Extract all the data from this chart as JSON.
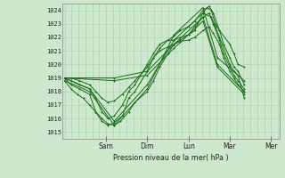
{
  "bg_color": "#cde8cd",
  "plot_bg_color": "#cde8cd",
  "grid_color": "#b0d4b0",
  "line_color": "#1a6b1a",
  "xlabel": "Pression niveau de la mer( hPa )",
  "ylim": [
    1014.5,
    1024.5
  ],
  "yticks": [
    1015,
    1016,
    1017,
    1018,
    1019,
    1020,
    1021,
    1022,
    1023,
    1024
  ],
  "day_labels": [
    "Sam",
    "Dim",
    "Lun",
    "Mar",
    "Mer"
  ],
  "day_positions": [
    1,
    2,
    3,
    4,
    5
  ],
  "xlim": [
    -0.05,
    5.2
  ],
  "n_days": 5,
  "series": [
    [
      0.0,
      1019.0,
      0.15,
      1018.5,
      0.35,
      1018.2,
      0.6,
      1017.8,
      0.75,
      1016.5,
      0.9,
      1015.8,
      1.05,
      1015.5,
      1.2,
      1015.7,
      1.4,
      1016.2,
      1.55,
      1017.5,
      1.7,
      1018.0,
      2.0,
      1019.5,
      2.15,
      1020.5,
      2.3,
      1021.2,
      2.5,
      1021.8,
      2.65,
      1022.1,
      2.8,
      1022.5,
      3.0,
      1022.8,
      3.15,
      1023.2,
      3.35,
      1024.0,
      3.5,
      1024.3,
      3.6,
      1023.8,
      3.75,
      1022.5,
      3.85,
      1021.5,
      4.0,
      1020.5,
      4.1,
      1019.8,
      4.2,
      1019.5,
      4.35,
      1018.5
    ],
    [
      0.0,
      1019.0,
      0.15,
      1018.8,
      0.35,
      1018.5,
      0.6,
      1018.2,
      0.75,
      1017.5,
      0.9,
      1016.5,
      1.05,
      1016.0,
      1.2,
      1016.2,
      1.4,
      1017.0,
      1.55,
      1018.0,
      1.7,
      1018.5,
      2.0,
      1020.0,
      2.15,
      1020.8,
      2.3,
      1021.5,
      2.5,
      1021.8,
      2.65,
      1021.8,
      2.8,
      1022.0,
      3.0,
      1022.2,
      3.15,
      1022.8,
      3.35,
      1023.5,
      3.5,
      1023.8,
      3.6,
      1023.0,
      3.75,
      1021.8,
      3.85,
      1020.8,
      4.0,
      1019.8,
      4.1,
      1019.2,
      4.2,
      1018.8,
      4.35,
      1018.2
    ],
    [
      0.0,
      1019.0,
      0.15,
      1019.0,
      0.35,
      1018.8,
      0.6,
      1018.5,
      0.75,
      1018.0,
      0.9,
      1017.5,
      1.05,
      1017.2,
      1.2,
      1017.3,
      1.4,
      1017.8,
      1.55,
      1018.3,
      1.7,
      1018.8,
      2.0,
      1019.8,
      2.15,
      1020.5,
      2.3,
      1021.0,
      2.5,
      1021.3,
      2.65,
      1021.5,
      2.8,
      1021.7,
      3.0,
      1021.8,
      3.15,
      1022.0,
      3.35,
      1022.5,
      3.5,
      1022.8,
      3.6,
      1022.3,
      3.75,
      1021.5,
      3.85,
      1020.5,
      4.0,
      1019.5,
      4.1,
      1019.0,
      4.2,
      1018.5,
      4.35,
      1018.0
    ],
    [
      0.0,
      1019.0,
      1.2,
      1019.0,
      2.0,
      1019.5,
      2.65,
      1021.5,
      3.35,
      1023.5,
      3.7,
      1020.0,
      4.35,
      1018.0
    ],
    [
      0.0,
      1019.0,
      1.2,
      1018.8,
      2.0,
      1019.2,
      2.65,
      1021.2,
      3.35,
      1023.2,
      3.7,
      1019.8,
      4.35,
      1017.8
    ],
    [
      0.0,
      1018.8,
      0.6,
      1018.0,
      1.2,
      1015.5,
      2.0,
      1018.2,
      2.65,
      1022.2,
      3.35,
      1024.2,
      3.7,
      1020.5,
      4.35,
      1018.8
    ],
    [
      0.0,
      1019.0,
      0.6,
      1018.2,
      1.2,
      1015.8,
      2.0,
      1018.5,
      2.65,
      1021.8,
      3.35,
      1023.8,
      3.55,
      1023.5,
      3.65,
      1022.8,
      3.75,
      1022.0,
      4.0,
      1020.0,
      4.1,
      1019.5,
      4.2,
      1019.2,
      4.35,
      1017.5
    ],
    [
      0.0,
      1018.8,
      0.15,
      1018.2,
      0.3,
      1017.8,
      0.45,
      1017.5,
      0.6,
      1017.0,
      0.75,
      1016.5,
      0.9,
      1016.0,
      1.05,
      1015.6,
      1.2,
      1015.5,
      1.35,
      1015.8,
      1.55,
      1016.5,
      1.7,
      1017.2,
      2.0,
      1018.0,
      2.15,
      1018.8,
      2.3,
      1019.8,
      2.5,
      1020.8,
      2.65,
      1021.5,
      2.8,
      1021.8,
      3.0,
      1022.2,
      3.15,
      1022.5,
      3.35,
      1023.8,
      3.45,
      1024.2,
      3.55,
      1024.0,
      3.65,
      1023.0,
      3.75,
      1022.5,
      4.0,
      1021.5,
      4.1,
      1020.8,
      4.2,
      1020.0,
      4.35,
      1019.8
    ]
  ]
}
